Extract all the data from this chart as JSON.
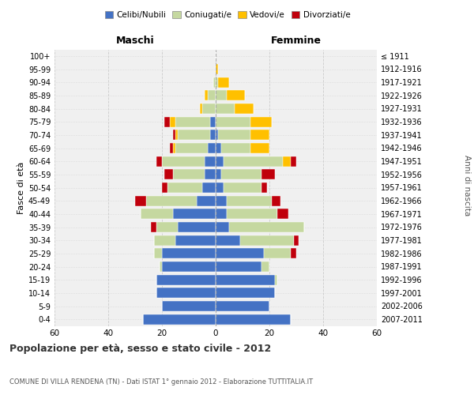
{
  "age_groups": [
    "0-4",
    "5-9",
    "10-14",
    "15-19",
    "20-24",
    "25-29",
    "30-34",
    "35-39",
    "40-44",
    "45-49",
    "50-54",
    "55-59",
    "60-64",
    "65-69",
    "70-74",
    "75-79",
    "80-84",
    "85-89",
    "90-94",
    "95-99",
    "100+"
  ],
  "birth_years": [
    "2007-2011",
    "2002-2006",
    "1997-2001",
    "1992-1996",
    "1987-1991",
    "1982-1986",
    "1977-1981",
    "1972-1976",
    "1967-1971",
    "1962-1966",
    "1957-1961",
    "1952-1956",
    "1947-1951",
    "1942-1946",
    "1937-1941",
    "1932-1936",
    "1927-1931",
    "1922-1926",
    "1917-1921",
    "1912-1916",
    "≤ 1911"
  ],
  "males": {
    "celibi": [
      27,
      20,
      22,
      22,
      20,
      20,
      15,
      14,
      16,
      7,
      5,
      4,
      4,
      3,
      2,
      2,
      0,
      0,
      0,
      0,
      0
    ],
    "coniugati": [
      0,
      0,
      0,
      0,
      1,
      3,
      8,
      8,
      12,
      19,
      13,
      12,
      16,
      12,
      12,
      13,
      5,
      3,
      1,
      0,
      0
    ],
    "vedovi": [
      0,
      0,
      0,
      0,
      0,
      0,
      0,
      0,
      0,
      0,
      0,
      0,
      0,
      1,
      1,
      2,
      1,
      1,
      0,
      0,
      0
    ],
    "divorziati": [
      0,
      0,
      0,
      0,
      0,
      0,
      0,
      2,
      0,
      4,
      2,
      3,
      2,
      1,
      1,
      2,
      0,
      0,
      0,
      0,
      0
    ]
  },
  "females": {
    "nubili": [
      28,
      20,
      22,
      22,
      17,
      18,
      9,
      5,
      4,
      4,
      3,
      2,
      3,
      2,
      1,
      0,
      0,
      0,
      0,
      0,
      0
    ],
    "coniugate": [
      0,
      0,
      0,
      1,
      3,
      10,
      20,
      28,
      19,
      17,
      14,
      15,
      22,
      11,
      12,
      13,
      7,
      4,
      1,
      0,
      0
    ],
    "vedove": [
      0,
      0,
      0,
      0,
      0,
      0,
      0,
      0,
      0,
      0,
      0,
      0,
      3,
      7,
      7,
      8,
      7,
      7,
      4,
      1,
      0
    ],
    "divorziate": [
      0,
      0,
      0,
      0,
      0,
      2,
      2,
      0,
      4,
      3,
      2,
      5,
      2,
      0,
      0,
      0,
      0,
      0,
      0,
      0,
      0
    ]
  },
  "colors": {
    "celibi": "#4472c4",
    "coniugati": "#c5d8a0",
    "vedovi": "#ffc000",
    "divorziati": "#c0000c"
  },
  "xlim": 60,
  "title": "Popolazione per età, sesso e stato civile - 2012",
  "subtitle": "COMUNE DI VILLA RENDENA (TN) - Dati ISTAT 1° gennaio 2012 - Elaborazione TUTTITALIA.IT",
  "ylabel_left": "Fasce di età",
  "ylabel_right": "Anni di nascita",
  "xlabel_left": "Maschi",
  "xlabel_right": "Femmine",
  "bg_color": "#f0f0f0",
  "grid_color": "#cccccc"
}
